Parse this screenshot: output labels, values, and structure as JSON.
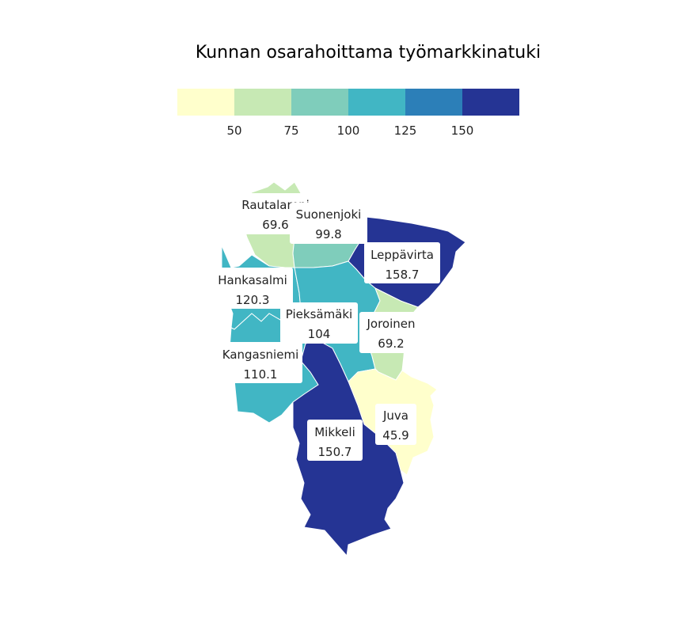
{
  "title": "Kunnan osarahoittama työmarkkinatuki",
  "legend": {
    "colors": [
      "#ffffcc",
      "#c7e9b4",
      "#7fcdbb",
      "#41b6c4",
      "#2c7fb8",
      "#253494"
    ],
    "ticks": [
      "50",
      "75",
      "100",
      "125",
      "150"
    ],
    "breaks": [
      50,
      75,
      100,
      125,
      150
    ]
  },
  "municipalities": [
    {
      "name": "Rautalampi",
      "value": "69.6",
      "color": "#c7e9b4"
    },
    {
      "name": "Suonenjoki",
      "value": "99.8",
      "color": "#7fcdbb"
    },
    {
      "name": "Leppävirta",
      "value": "158.7",
      "color": "#253494"
    },
    {
      "name": "Hankasalmi",
      "value": "120.3",
      "color": "#41b6c4"
    },
    {
      "name": "Pieksämäki",
      "value": "104",
      "color": "#41b6c4"
    },
    {
      "name": "Joroinen",
      "value": "69.2",
      "color": "#c7e9b4"
    },
    {
      "name": "Kangasniemi",
      "value": "110.1",
      "color": "#41b6c4"
    },
    {
      "name": "Juva",
      "value": "45.9",
      "color": "#ffffcc"
    },
    {
      "name": "Mikkeli",
      "value": "150.7",
      "color": "#253494"
    }
  ]
}
